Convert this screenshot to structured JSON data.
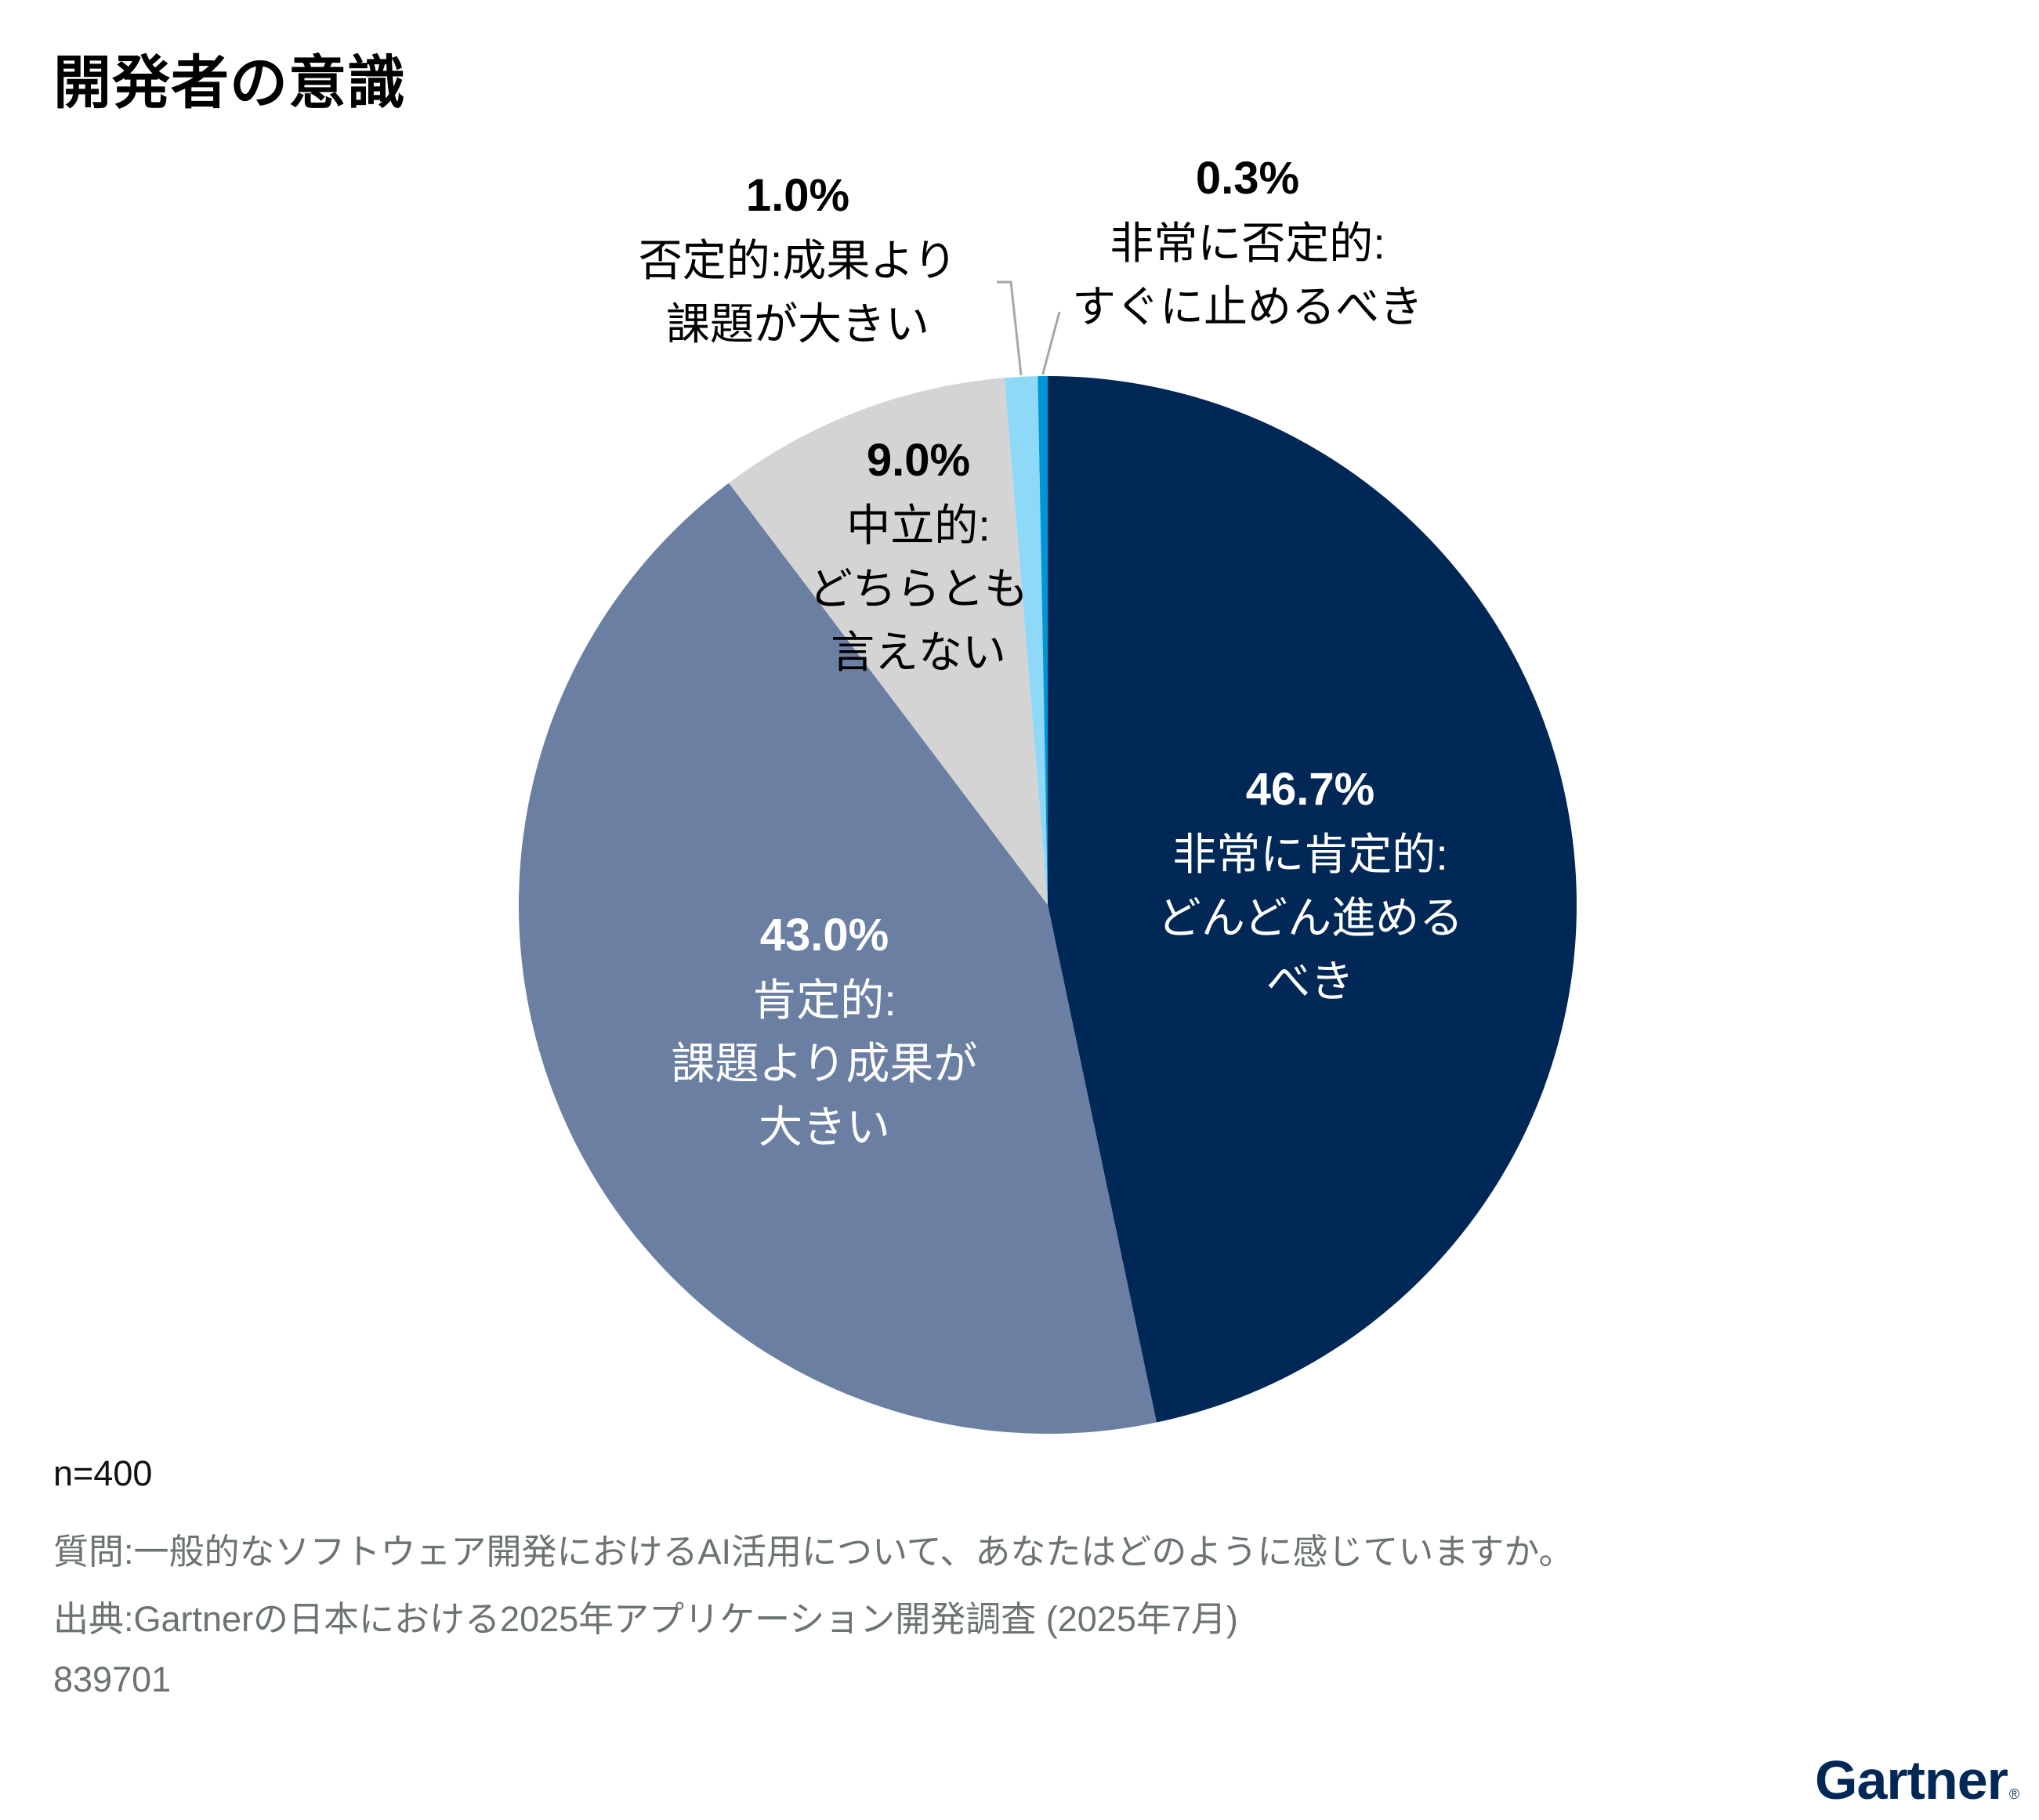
{
  "title": "開発者の意識",
  "chart_data": {
    "type": "pie",
    "title": "開発者の意識",
    "start_angle": "12 o'clock",
    "direction": "clockwise",
    "slices": [
      {
        "value": 46.7,
        "pct_label": "46.7%",
        "lines": [
          "非常に肯定的:",
          "どんどん進める",
          "べき"
        ],
        "color": "#002856",
        "label_color": "#ffffff",
        "label_position": "inside"
      },
      {
        "value": 43.0,
        "pct_label": "43.0%",
        "lines": [
          "肯定的:",
          "課題より成果が",
          "大きい"
        ],
        "color": "#6a7fa2",
        "label_color": "#ffffff",
        "label_position": "inside"
      },
      {
        "value": 9.0,
        "pct_label": "9.0%",
        "lines": [
          "中立的:",
          "どちらとも",
          "言えない"
        ],
        "color": "#d4d4d4",
        "label_color": "#000000",
        "label_position": "inside"
      },
      {
        "value": 1.0,
        "pct_label": "1.0%",
        "lines": [
          "否定的:成果より",
          "課題が大きい"
        ],
        "color": "#8fd9f8",
        "label_color": "#000000",
        "label_position": "outside-leader"
      },
      {
        "value": 0.3,
        "pct_label": "0.3%",
        "lines": [
          "非常に否定的:",
          "すぐに止めるべき"
        ],
        "color": "#0096d6",
        "label_color": "#000000",
        "label_position": "outside-leader"
      }
    ],
    "leader_line_color": "#a6a6a6"
  },
  "footer": {
    "n": "n=400",
    "question": "質問:一般的なソフトウェア開発におけるAI活用について、あなたはどのように感じていますか。",
    "source": "出典:Gartnerの日本における2025年アプリケーション開発調査 (2025年7月)",
    "id": "839701"
  },
  "logo": {
    "text": "Gartner",
    "mark": "®"
  }
}
